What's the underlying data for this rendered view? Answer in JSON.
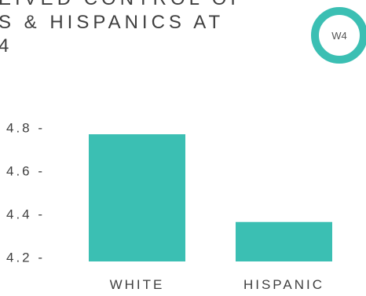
{
  "title_lines": [
    "EIVED CONTROL OF",
    "S & HISPANICS AT",
    "4"
  ],
  "badge": "W4",
  "colors": {
    "bar": "#3bbfb3",
    "badge_ring": "#3bbfb3"
  },
  "chart_data": {
    "type": "bar",
    "categories": [
      "WHITE",
      "HISPANIC"
    ],
    "values": [
      4.78,
      4.38
    ],
    "title": "",
    "xlabel": "",
    "ylabel": "",
    "ylim": [
      4.2,
      4.8
    ],
    "yticks": [
      "4.8 -",
      "4.6 -",
      "4.4 -",
      "4.2 -"
    ],
    "grid": false,
    "legend": "none"
  }
}
